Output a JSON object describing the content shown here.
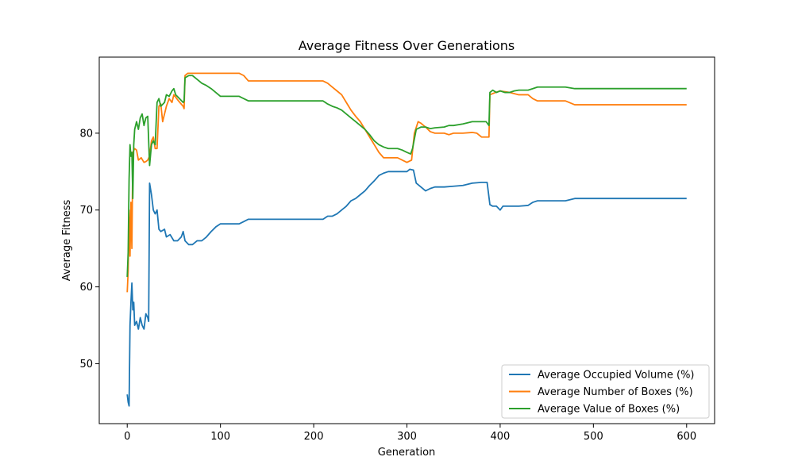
{
  "chart_data": {
    "type": "line",
    "title": "Average Fitness Over Generations",
    "xlabel": "Generation",
    "ylabel": "Average Fitness",
    "xlim": [
      -30,
      630
    ],
    "ylim": [
      42.2,
      89.9
    ],
    "xticks": [
      0,
      100,
      200,
      300,
      400,
      500,
      600
    ],
    "yticks": [
      50,
      60,
      70,
      80
    ],
    "grid": false,
    "legend_position": "lower-right",
    "series": [
      {
        "name": "Average Occupied Volume (%)",
        "color": "#1f77b4",
        "points": [
          [
            0,
            46.0
          ],
          [
            1,
            45.0
          ],
          [
            2,
            44.5
          ],
          [
            3,
            55.0
          ],
          [
            4,
            58.0
          ],
          [
            5,
            60.5
          ],
          [
            6,
            57.0
          ],
          [
            7,
            58.0
          ],
          [
            8,
            55.0
          ],
          [
            10,
            55.5
          ],
          [
            12,
            54.5
          ],
          [
            14,
            56.0
          ],
          [
            16,
            55.0
          ],
          [
            18,
            54.5
          ],
          [
            20,
            56.5
          ],
          [
            22,
            56.0
          ],
          [
            23,
            55.5
          ],
          [
            24,
            73.5
          ],
          [
            26,
            72.0
          ],
          [
            28,
            70.0
          ],
          [
            30,
            69.5
          ],
          [
            32,
            70.0
          ],
          [
            34,
            67.5
          ],
          [
            36,
            67.2
          ],
          [
            40,
            67.5
          ],
          [
            42,
            66.5
          ],
          [
            46,
            66.8
          ],
          [
            50,
            66.0
          ],
          [
            54,
            66.0
          ],
          [
            58,
            66.5
          ],
          [
            60,
            67.2
          ],
          [
            62,
            66.0
          ],
          [
            66,
            65.5
          ],
          [
            70,
            65.5
          ],
          [
            75,
            66.0
          ],
          [
            80,
            66.0
          ],
          [
            85,
            66.5
          ],
          [
            90,
            67.2
          ],
          [
            95,
            67.8
          ],
          [
            100,
            68.2
          ],
          [
            110,
            68.2
          ],
          [
            120,
            68.2
          ],
          [
            125,
            68.5
          ],
          [
            130,
            68.8
          ],
          [
            140,
            68.8
          ],
          [
            150,
            68.8
          ],
          [
            160,
            68.8
          ],
          [
            170,
            68.8
          ],
          [
            180,
            68.8
          ],
          [
            190,
            68.8
          ],
          [
            200,
            68.8
          ],
          [
            210,
            68.8
          ],
          [
            215,
            69.2
          ],
          [
            220,
            69.2
          ],
          [
            225,
            69.5
          ],
          [
            230,
            70.0
          ],
          [
            235,
            70.5
          ],
          [
            240,
            71.2
          ],
          [
            245,
            71.5
          ],
          [
            250,
            72.0
          ],
          [
            255,
            72.5
          ],
          [
            260,
            73.2
          ],
          [
            265,
            73.8
          ],
          [
            270,
            74.5
          ],
          [
            275,
            74.8
          ],
          [
            280,
            75.0
          ],
          [
            290,
            75.0
          ],
          [
            300,
            75.0
          ],
          [
            303,
            75.3
          ],
          [
            307,
            75.2
          ],
          [
            310,
            73.5
          ],
          [
            315,
            73.0
          ],
          [
            320,
            72.5
          ],
          [
            325,
            72.8
          ],
          [
            330,
            73.0
          ],
          [
            340,
            73.0
          ],
          [
            350,
            73.1
          ],
          [
            360,
            73.2
          ],
          [
            370,
            73.5
          ],
          [
            380,
            73.6
          ],
          [
            386,
            73.6
          ],
          [
            389,
            70.7
          ],
          [
            392,
            70.5
          ],
          [
            396,
            70.5
          ],
          [
            400,
            70.0
          ],
          [
            403,
            70.5
          ],
          [
            410,
            70.5
          ],
          [
            420,
            70.5
          ],
          [
            430,
            70.6
          ],
          [
            435,
            71.0
          ],
          [
            440,
            71.2
          ],
          [
            450,
            71.2
          ],
          [
            460,
            71.2
          ],
          [
            470,
            71.2
          ],
          [
            480,
            71.5
          ],
          [
            490,
            71.5
          ],
          [
            500,
            71.5
          ],
          [
            520,
            71.5
          ],
          [
            540,
            71.5
          ],
          [
            560,
            71.5
          ],
          [
            580,
            71.5
          ],
          [
            600,
            71.5
          ]
        ]
      },
      {
        "name": "Average Number of Boxes (%)",
        "color": "#ff7f0e",
        "points": [
          [
            0,
            59.3
          ],
          [
            1,
            62.0
          ],
          [
            2,
            70.0
          ],
          [
            3,
            64.0
          ],
          [
            4,
            71.0
          ],
          [
            5,
            65.0
          ],
          [
            6,
            77.5
          ],
          [
            8,
            78.0
          ],
          [
            10,
            77.8
          ],
          [
            12,
            76.5
          ],
          [
            15,
            76.8
          ],
          [
            18,
            76.2
          ],
          [
            20,
            76.3
          ],
          [
            22,
            76.5
          ],
          [
            24,
            77.0
          ],
          [
            26,
            79.0
          ],
          [
            28,
            79.5
          ],
          [
            30,
            78.0
          ],
          [
            32,
            78.0
          ],
          [
            34,
            83.5
          ],
          [
            36,
            83.8
          ],
          [
            38,
            81.5
          ],
          [
            40,
            82.5
          ],
          [
            42,
            83.5
          ],
          [
            45,
            84.5
          ],
          [
            48,
            84.0
          ],
          [
            50,
            85.0
          ],
          [
            55,
            84.2
          ],
          [
            60,
            83.5
          ],
          [
            61,
            83.2
          ],
          [
            62,
            87.5
          ],
          [
            65,
            87.8
          ],
          [
            70,
            87.8
          ],
          [
            80,
            87.8
          ],
          [
            90,
            87.8
          ],
          [
            100,
            87.8
          ],
          [
            110,
            87.8
          ],
          [
            120,
            87.8
          ],
          [
            125,
            87.5
          ],
          [
            130,
            86.8
          ],
          [
            140,
            86.8
          ],
          [
            150,
            86.8
          ],
          [
            160,
            86.8
          ],
          [
            170,
            86.8
          ],
          [
            180,
            86.8
          ],
          [
            190,
            86.8
          ],
          [
            200,
            86.8
          ],
          [
            210,
            86.8
          ],
          [
            215,
            86.5
          ],
          [
            220,
            86.0
          ],
          [
            225,
            85.5
          ],
          [
            230,
            85.0
          ],
          [
            235,
            84.0
          ],
          [
            240,
            83.0
          ],
          [
            245,
            82.2
          ],
          [
            250,
            81.5
          ],
          [
            255,
            80.5
          ],
          [
            260,
            79.5
          ],
          [
            265,
            78.5
          ],
          [
            270,
            77.5
          ],
          [
            275,
            76.8
          ],
          [
            280,
            76.8
          ],
          [
            290,
            76.8
          ],
          [
            295,
            76.5
          ],
          [
            300,
            76.2
          ],
          [
            305,
            76.5
          ],
          [
            308,
            80.0
          ],
          [
            312,
            81.5
          ],
          [
            315,
            81.3
          ],
          [
            320,
            80.8
          ],
          [
            325,
            80.2
          ],
          [
            330,
            80.0
          ],
          [
            340,
            80.0
          ],
          [
            345,
            79.8
          ],
          [
            350,
            80.0
          ],
          [
            360,
            80.0
          ],
          [
            370,
            80.1
          ],
          [
            375,
            80.0
          ],
          [
            380,
            79.5
          ],
          [
            385,
            79.5
          ],
          [
            388,
            79.5
          ],
          [
            389,
            85.0
          ],
          [
            395,
            85.3
          ],
          [
            400,
            85.5
          ],
          [
            410,
            85.3
          ],
          [
            420,
            85.0
          ],
          [
            430,
            85.0
          ],
          [
            435,
            84.5
          ],
          [
            440,
            84.2
          ],
          [
            450,
            84.2
          ],
          [
            460,
            84.2
          ],
          [
            470,
            84.2
          ],
          [
            480,
            83.7
          ],
          [
            500,
            83.7
          ],
          [
            520,
            83.7
          ],
          [
            540,
            83.7
          ],
          [
            560,
            83.7
          ],
          [
            580,
            83.7
          ],
          [
            600,
            83.7
          ]
        ]
      },
      {
        "name": "Average Value of Boxes (%)",
        "color": "#2ca02c",
        "points": [
          [
            0,
            61.3
          ],
          [
            1,
            64.5
          ],
          [
            2,
            74.0
          ],
          [
            3,
            78.5
          ],
          [
            4,
            77.0
          ],
          [
            5,
            77.5
          ],
          [
            6,
            71.5
          ],
          [
            7,
            78.5
          ],
          [
            8,
            80.5
          ],
          [
            10,
            81.5
          ],
          [
            12,
            80.5
          ],
          [
            14,
            82.0
          ],
          [
            16,
            82.5
          ],
          [
            18,
            81.0
          ],
          [
            20,
            82.0
          ],
          [
            22,
            82.2
          ],
          [
            24,
            75.8
          ],
          [
            26,
            78.5
          ],
          [
            28,
            79.0
          ],
          [
            30,
            78.5
          ],
          [
            32,
            84.0
          ],
          [
            34,
            84.5
          ],
          [
            36,
            83.5
          ],
          [
            40,
            84.0
          ],
          [
            42,
            85.0
          ],
          [
            45,
            84.8
          ],
          [
            48,
            85.5
          ],
          [
            50,
            85.8
          ],
          [
            52,
            85.0
          ],
          [
            56,
            84.5
          ],
          [
            60,
            84.0
          ],
          [
            61,
            84.2
          ],
          [
            62,
            87.2
          ],
          [
            66,
            87.5
          ],
          [
            70,
            87.5
          ],
          [
            75,
            87.0
          ],
          [
            80,
            86.5
          ],
          [
            85,
            86.2
          ],
          [
            90,
            85.8
          ],
          [
            95,
            85.3
          ],
          [
            100,
            84.8
          ],
          [
            110,
            84.8
          ],
          [
            120,
            84.8
          ],
          [
            125,
            84.5
          ],
          [
            130,
            84.2
          ],
          [
            140,
            84.2
          ],
          [
            150,
            84.2
          ],
          [
            160,
            84.2
          ],
          [
            170,
            84.2
          ],
          [
            180,
            84.2
          ],
          [
            190,
            84.2
          ],
          [
            200,
            84.2
          ],
          [
            210,
            84.2
          ],
          [
            215,
            83.8
          ],
          [
            220,
            83.5
          ],
          [
            225,
            83.3
          ],
          [
            230,
            83.0
          ],
          [
            235,
            82.5
          ],
          [
            240,
            82.0
          ],
          [
            245,
            81.5
          ],
          [
            250,
            81.0
          ],
          [
            255,
            80.5
          ],
          [
            260,
            79.8
          ],
          [
            265,
            79.0
          ],
          [
            270,
            78.5
          ],
          [
            275,
            78.2
          ],
          [
            280,
            78.0
          ],
          [
            290,
            78.0
          ],
          [
            295,
            77.8
          ],
          [
            300,
            77.5
          ],
          [
            304,
            77.3
          ],
          [
            306,
            78.0
          ],
          [
            310,
            80.5
          ],
          [
            315,
            80.8
          ],
          [
            320,
            80.8
          ],
          [
            325,
            80.6
          ],
          [
            330,
            80.7
          ],
          [
            340,
            80.8
          ],
          [
            345,
            81.0
          ],
          [
            350,
            81.0
          ],
          [
            360,
            81.2
          ],
          [
            370,
            81.5
          ],
          [
            380,
            81.5
          ],
          [
            385,
            81.5
          ],
          [
            388,
            81.0
          ],
          [
            389,
            85.3
          ],
          [
            392,
            85.6
          ],
          [
            396,
            85.3
          ],
          [
            400,
            85.5
          ],
          [
            405,
            85.3
          ],
          [
            410,
            85.3
          ],
          [
            415,
            85.5
          ],
          [
            420,
            85.6
          ],
          [
            430,
            85.6
          ],
          [
            435,
            85.8
          ],
          [
            440,
            86.0
          ],
          [
            450,
            86.0
          ],
          [
            460,
            86.0
          ],
          [
            470,
            86.0
          ],
          [
            480,
            85.8
          ],
          [
            500,
            85.8
          ],
          [
            520,
            85.8
          ],
          [
            540,
            85.8
          ],
          [
            560,
            85.8
          ],
          [
            580,
            85.8
          ],
          [
            600,
            85.8
          ]
        ]
      }
    ]
  }
}
